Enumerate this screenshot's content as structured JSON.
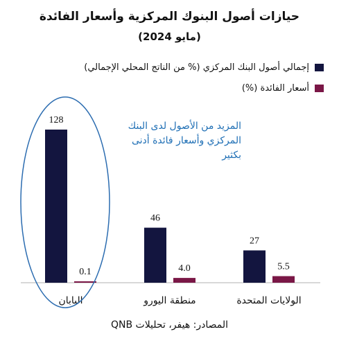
{
  "chart_data": {
    "type": "bar",
    "title": "حيازات أصول البنوك المركزية وأسعار الفائدة",
    "subtitle": "(مايو 2024)",
    "categories": [
      "اليابان",
      "منطقة اليورو",
      "الولايات المتحدة"
    ],
    "series": [
      {
        "name": "إجمالي أصول البنك المركزي (% من الناتج المحلي الإجمالي)",
        "values": [
          128,
          46,
          27
        ],
        "labels": [
          "128",
          "46",
          "27"
        ],
        "color": "#13153f"
      },
      {
        "name": "أسعار الفائدة (%)",
        "values": [
          0.1,
          4.0,
          5.5
        ],
        "labels": [
          "0.1",
          "4.0",
          "5.5"
        ],
        "color": "#7a1746"
      }
    ],
    "ylim": [
      0,
      130
    ],
    "grid": false,
    "legend_position": "top-right",
    "annotation": [
      "المزيد من الأصول لدى البنك",
      "المركزي وأسعار فائدة أدنى",
      "بكثير"
    ],
    "source": "المصادر: هيفر، تحليلات QNB",
    "highlight_color": "#2b6cb0"
  }
}
